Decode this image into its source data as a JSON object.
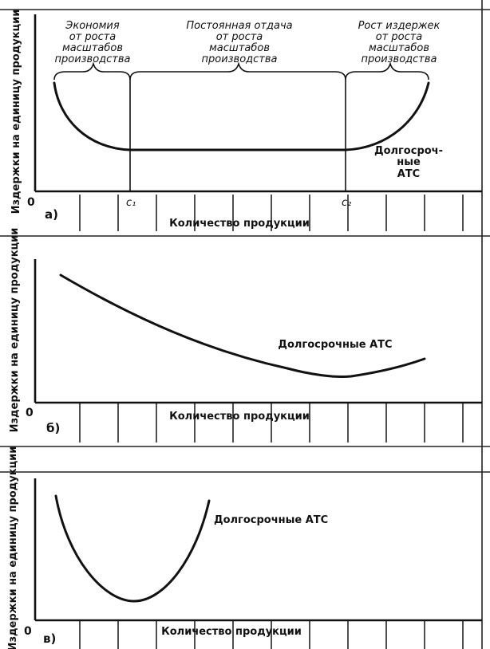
{
  "chart_data": [
    {
      "type": "line",
      "panel_label": "а)",
      "ylabel": "Издержки на единицу продукции",
      "xlabel": "Количество продукции",
      "origin_label": "0",
      "x_ticks": [
        "c₁",
        "c₂"
      ],
      "series": [
        {
          "name": "Долгосрочные АТС",
          "points": [
            [
              0.05,
              0.62
            ],
            [
              0.15,
              0.28
            ],
            [
              0.25,
              0.15
            ],
            [
              0.4,
              0.15
            ],
            [
              0.65,
              0.15
            ],
            [
              0.75,
              0.15
            ],
            [
              0.9,
              0.28
            ],
            [
              1.0,
              0.64
            ]
          ]
        }
      ],
      "curve_label": [
        "Долгосроч-",
        "ные",
        "АТС"
      ],
      "regions": [
        {
          "label": [
            "Экономия",
            "от роста",
            "масштабов",
            "производства"
          ]
        },
        {
          "label": [
            "Постоянная отдача",
            "от роста",
            "масштабов",
            "производства"
          ]
        },
        {
          "label": [
            "Рост издержек",
            "от роста",
            "масштабов",
            "производства"
          ]
        }
      ]
    },
    {
      "type": "line",
      "panel_label": "б)",
      "ylabel": "Издержки на единицу продукции",
      "xlabel": "Количество продукции",
      "origin_label": "0",
      "series": [
        {
          "name": "Долгосрочные АТС",
          "points": [
            [
              0.07,
              0.95
            ],
            [
              0.25,
              0.75
            ],
            [
              0.45,
              0.52
            ],
            [
              0.65,
              0.3
            ],
            [
              0.8,
              0.2
            ],
            [
              0.87,
              0.2
            ],
            [
              1.0,
              0.3
            ]
          ]
        }
      ],
      "curve_label": [
        "Долгосрочные АТС"
      ]
    },
    {
      "type": "line",
      "panel_label": "в)",
      "ylabel": "Издержки на единицу продукции",
      "xlabel": "Количество продукции",
      "origin_label": "0",
      "series": [
        {
          "name": "Долгосрочные АТС",
          "points": [
            [
              0.05,
              0.95
            ],
            [
              0.15,
              0.55
            ],
            [
              0.3,
              0.25
            ],
            [
              0.45,
              0.12
            ],
            [
              0.6,
              0.25
            ],
            [
              0.75,
              0.55
            ],
            [
              0.85,
              0.95
            ]
          ]
        }
      ],
      "curve_label": [
        "Долгосрочные АТС"
      ]
    }
  ]
}
